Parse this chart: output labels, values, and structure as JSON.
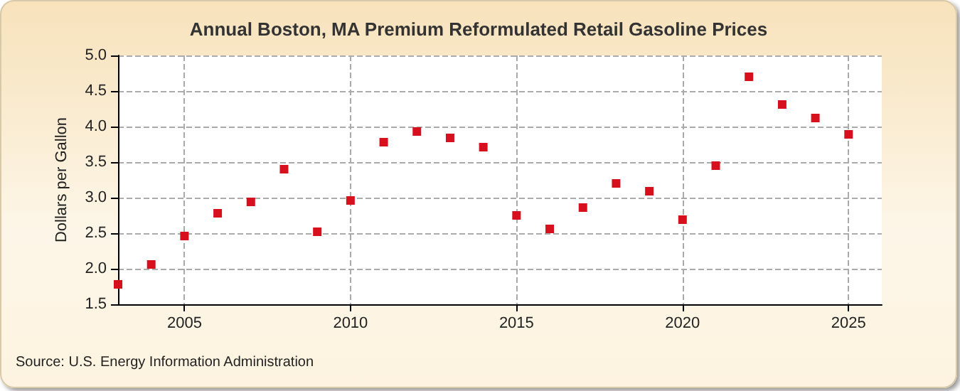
{
  "chart_data": {
    "type": "scatter",
    "title": "Annual Boston, MA Premium Reformulated Retail Gasoline Prices",
    "ylabel": "Dollars per Gallon",
    "annotations": [
      "Source: U.S. Energy Information Administration"
    ],
    "x": [
      2003,
      2004,
      2005,
      2006,
      2007,
      2008,
      2009,
      2010,
      2011,
      2012,
      2013,
      2014,
      2015,
      2016,
      2017,
      2018,
      2019,
      2020,
      2021,
      2022,
      2023,
      2024,
      2025
    ],
    "series": [
      {
        "color": "#d7101e",
        "values": [
          1.78,
          2.06,
          2.46,
          2.78,
          2.94,
          3.4,
          2.52,
          2.96,
          3.78,
          3.93,
          3.84,
          3.71,
          2.75,
          2.56,
          2.86,
          3.2,
          3.09,
          2.69,
          3.45,
          4.7,
          4.31,
          4.12,
          3.89
        ]
      }
    ],
    "xlim": [
      2003,
      2026
    ],
    "xticks": [
      2005,
      2010,
      2015,
      2020,
      2025
    ],
    "ylim": [
      1.5,
      5.0
    ],
    "yticks": [
      {
        "value": 1.5,
        "label": "1.5"
      },
      {
        "value": 2.0,
        "label": "2.0"
      },
      {
        "value": 2.5,
        "label": "2.5"
      },
      {
        "value": 3.0,
        "label": "3.0"
      },
      {
        "value": 3.5,
        "label": "3.5"
      },
      {
        "value": 4.0,
        "label": "4.0"
      },
      {
        "value": 4.5,
        "label": "4.5"
      },
      {
        "value": 5.0,
        "label": "5.0"
      }
    ],
    "grid": true,
    "marker": "square"
  }
}
